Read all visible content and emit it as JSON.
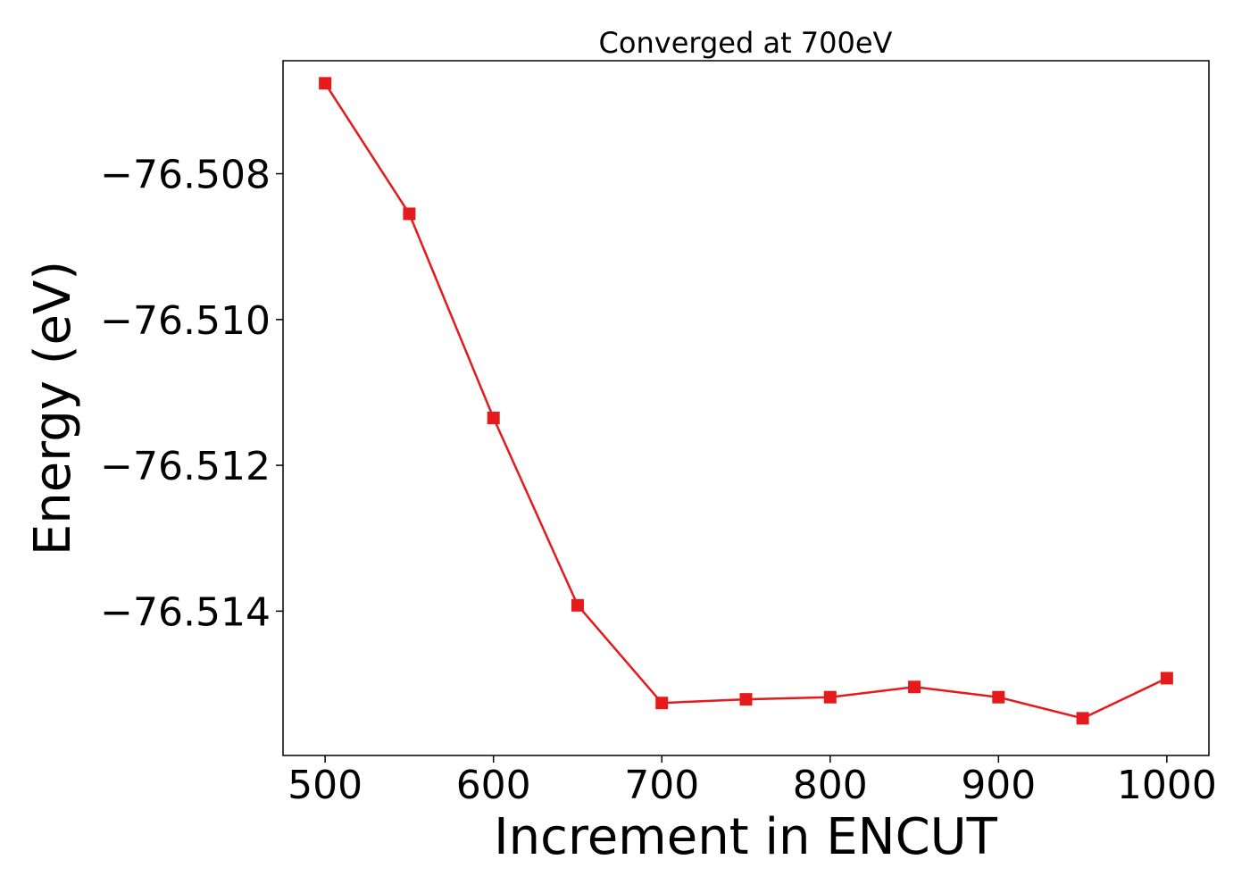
{
  "chart_data": {
    "type": "line",
    "title": "Converged at 700eV",
    "xlabel": "Increment in ENCUT",
    "ylabel": "Energy (eV)",
    "xlim": [
      475,
      1025
    ],
    "ylim": [
      -76.51598,
      -76.50645
    ],
    "xticks": [
      500,
      600,
      700,
      800,
      900,
      1000
    ],
    "xtick_labels": [
      "500",
      "600",
      "700",
      "800",
      "900",
      "1000"
    ],
    "yticks": [
      -76.508,
      -76.51,
      -76.512,
      -76.514
    ],
    "ytick_labels": [
      "−76.508",
      "−76.510",
      "−76.512",
      "−76.514"
    ],
    "grid": false,
    "legend": "none",
    "series": [
      {
        "color": "#e41a1c",
        "marker": "square",
        "x": [
          500,
          550,
          600,
          650,
          700,
          750,
          800,
          850,
          900,
          950,
          1000
        ],
        "y": [
          -76.50676,
          -76.50855,
          -76.51135,
          -76.51392,
          -76.51526,
          -76.51521,
          -76.51518,
          -76.51504,
          -76.51518,
          -76.51547,
          -76.51492
        ]
      }
    ]
  }
}
